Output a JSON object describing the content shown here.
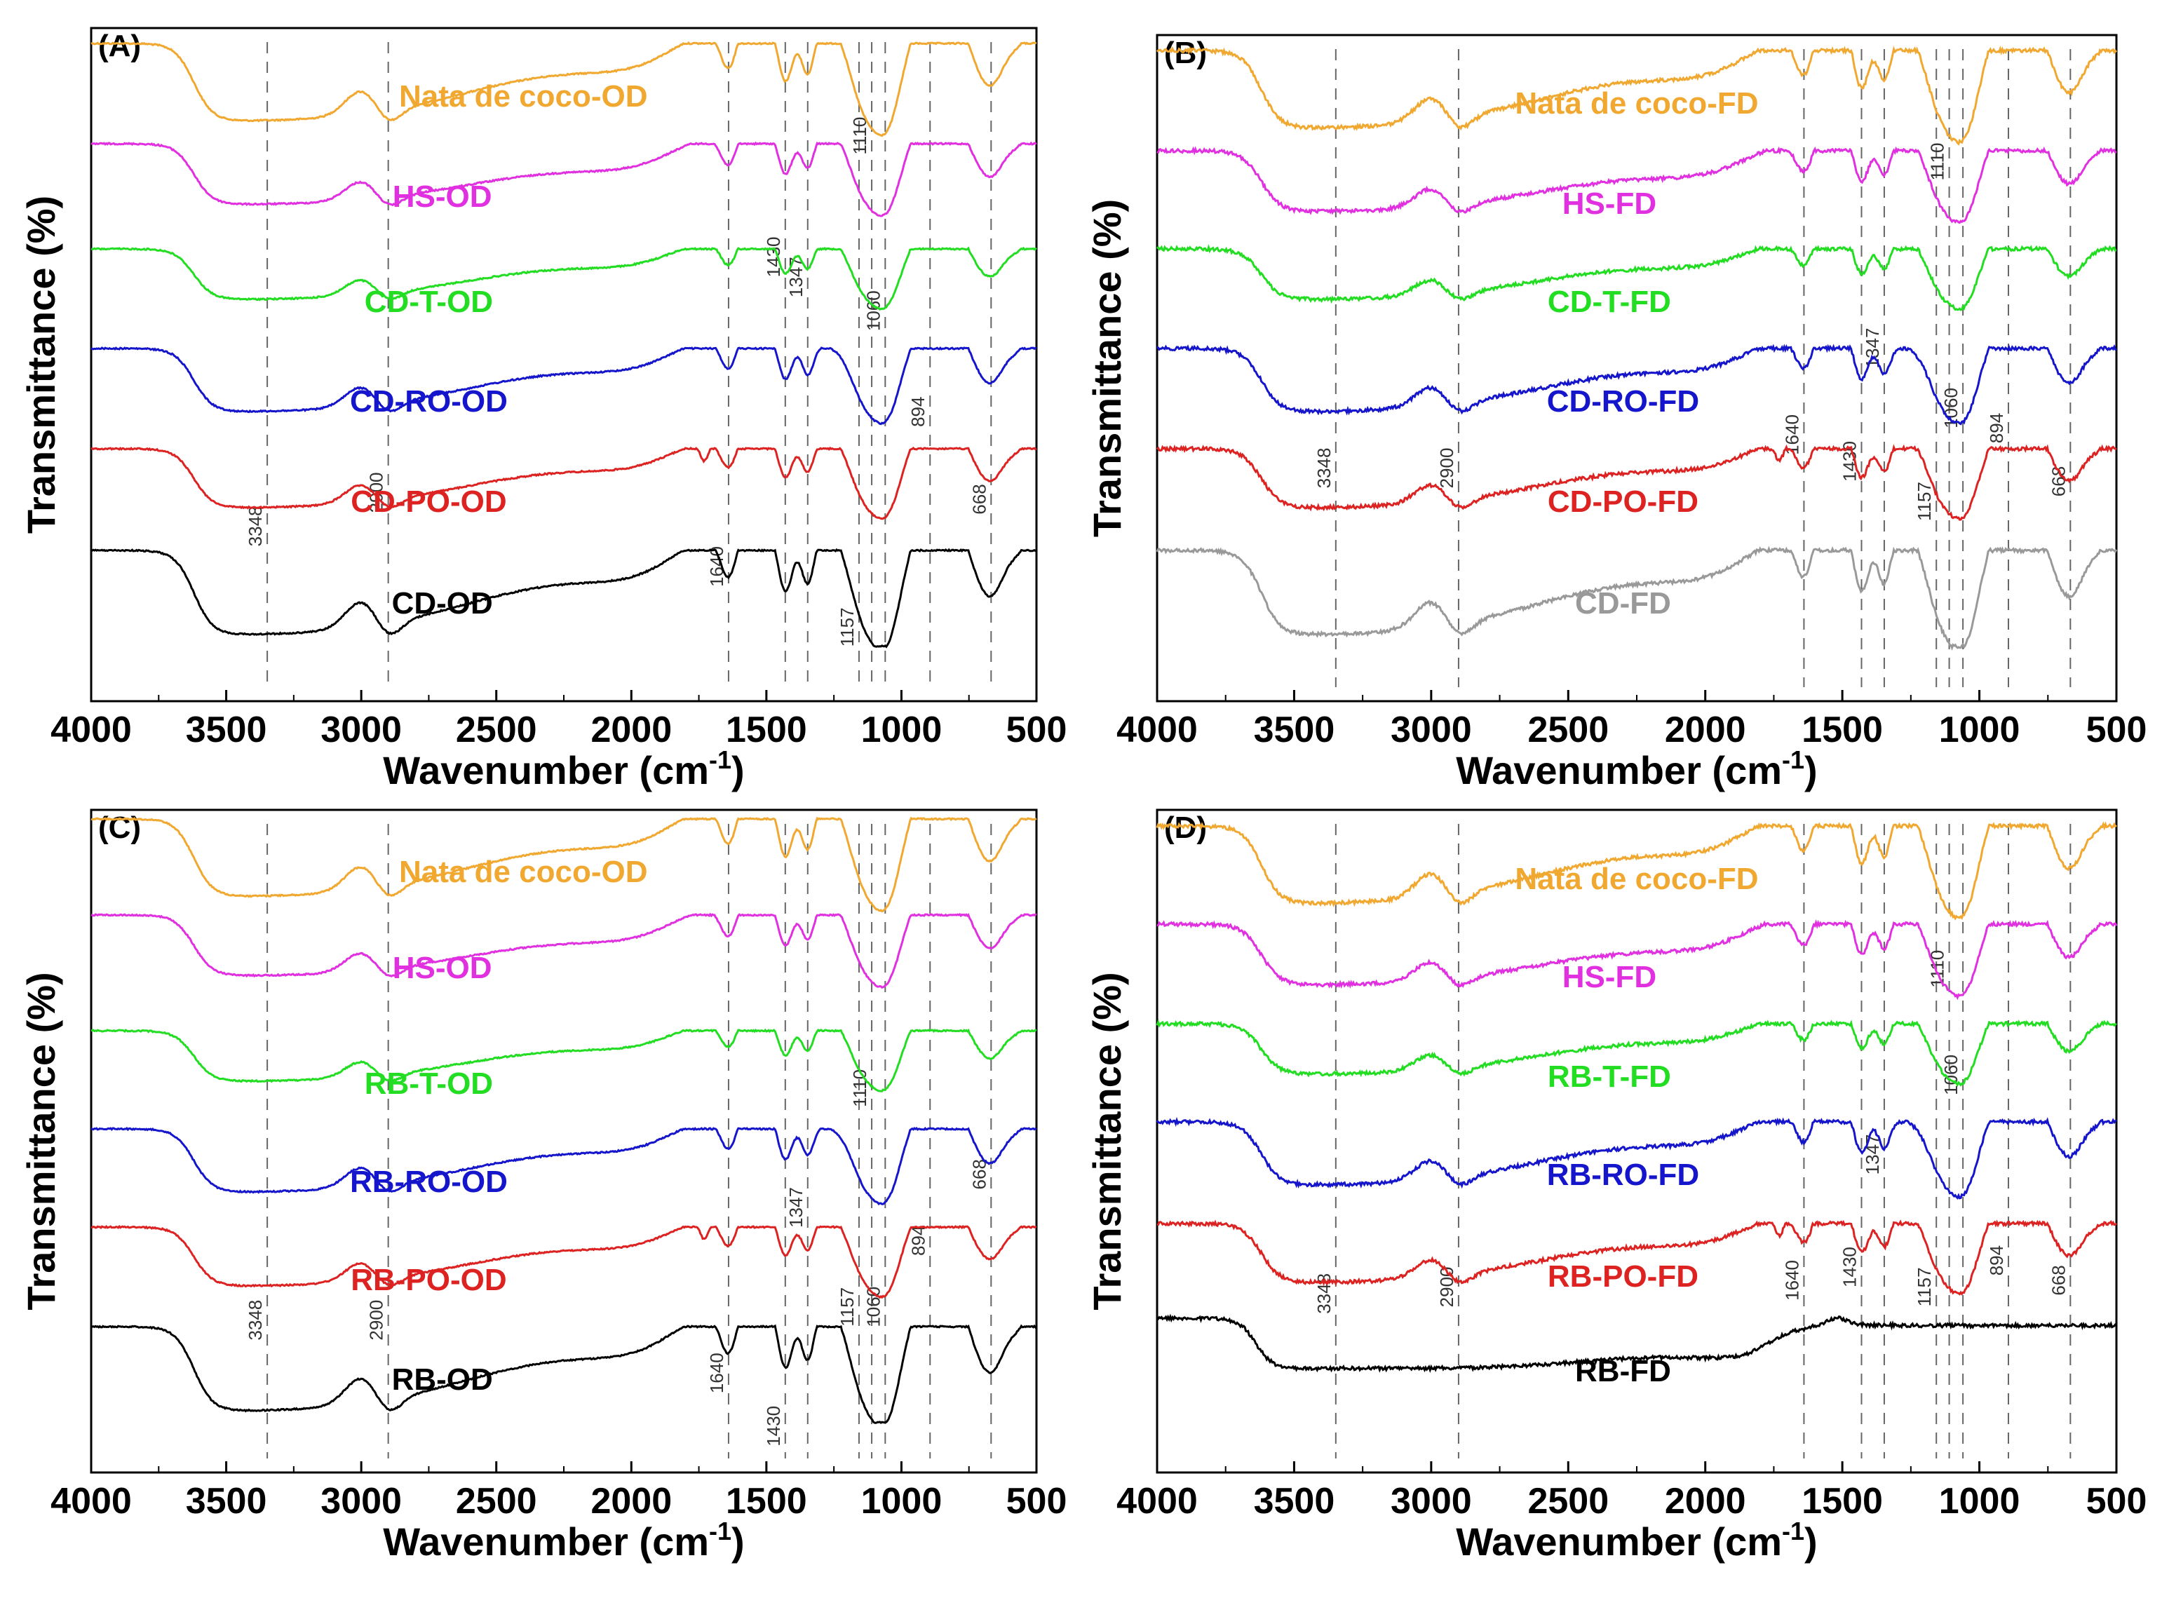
{
  "chart_data": [
    {
      "type": "line",
      "panel_label": "(A)",
      "xlabel": "Wavenumber (cm",
      "xlabel_sup": "-1",
      "xlabel_tail": ")",
      "ylabel": "Transmittance (%)",
      "xlim": [
        4000,
        500
      ],
      "x_reversed": true,
      "xticks": [
        "4000",
        "3500",
        "3000",
        "2500",
        "2000",
        "1500",
        "1000",
        "500"
      ],
      "peak_lines": [
        3348,
        2900,
        1640,
        1430,
        1347,
        1157,
        1110,
        1060,
        894,
        668
      ],
      "peak_labels": [
        {
          "text": "3348",
          "x": 3348,
          "level": 0.26
        },
        {
          "text": "2900",
          "x": 2900,
          "level": 0.31
        },
        {
          "text": "1640",
          "x": 1640,
          "level": 0.2
        },
        {
          "text": "1430",
          "x": 1430,
          "level": 0.66
        },
        {
          "text": "1347",
          "x": 1347,
          "level": 0.63
        },
        {
          "text": "1157",
          "x": 1157,
          "level": 0.11
        },
        {
          "text": "1110",
          "x": 1110,
          "level": 0.84
        },
        {
          "text": "1060",
          "x": 1060,
          "level": 0.58
        },
        {
          "text": "894",
          "x": 894,
          "level": 0.43
        },
        {
          "text": "668",
          "x": 668,
          "level": 0.3
        }
      ],
      "series": [
        {
          "name": "Nata de coco-OD",
          "color": "#f0a830",
          "label_x": 2400,
          "profile": "nata"
        },
        {
          "name": "HS-OD",
          "color": "#e030e0",
          "label_x": 2700,
          "profile": "hs"
        },
        {
          "name": "CD-T-OD",
          "color": "#22dd22",
          "label_x": 2750,
          "profile": "t"
        },
        {
          "name": "CD-RO-OD",
          "color": "#1515cc",
          "label_x": 2750,
          "profile": "ro"
        },
        {
          "name": "CD-PO-OD",
          "color": "#dd2222",
          "label_x": 2750,
          "profile": "po"
        },
        {
          "name": "CD-OD",
          "color": "#000000",
          "label_x": 2700,
          "profile": "base"
        }
      ]
    },
    {
      "type": "line",
      "panel_label": "(B)",
      "xlabel": "Wavenumber (cm",
      "xlabel_sup": "-1",
      "xlabel_tail": ")",
      "ylabel": "Transmittance (%)",
      "xlim": [
        4000,
        500
      ],
      "x_reversed": true,
      "xticks": [
        "4000",
        "3500",
        "3000",
        "2500",
        "2000",
        "1500",
        "1000",
        "500"
      ],
      "peak_lines": [
        3348,
        2900,
        1640,
        1430,
        1347,
        1157,
        1110,
        1060,
        894,
        668
      ],
      "peak_labels": [
        {
          "text": "3348",
          "x": 3348,
          "level": 0.35
        },
        {
          "text": "2900",
          "x": 2900,
          "level": 0.35
        },
        {
          "text": "1640",
          "x": 1640,
          "level": 0.4
        },
        {
          "text": "1430",
          "x": 1430,
          "level": 0.36
        },
        {
          "text": "1347",
          "x": 1347,
          "level": 0.53
        },
        {
          "text": "1157",
          "x": 1157,
          "level": 0.3
        },
        {
          "text": "1110",
          "x": 1110,
          "level": 0.81
        },
        {
          "text": "1060",
          "x": 1060,
          "level": 0.44
        },
        {
          "text": "894",
          "x": 894,
          "level": 0.41
        },
        {
          "text": "668",
          "x": 668,
          "level": 0.33
        }
      ],
      "series": [
        {
          "name": "Nata de coco-FD",
          "color": "#f0a830",
          "label_x": 2250,
          "profile": "nata"
        },
        {
          "name": "HS-FD",
          "color": "#e030e0",
          "label_x": 2350,
          "profile": "hs"
        },
        {
          "name": "CD-T-FD",
          "color": "#22dd22",
          "label_x": 2350,
          "profile": "t"
        },
        {
          "name": "CD-RO-FD",
          "color": "#1515cc",
          "label_x": 2300,
          "profile": "ro"
        },
        {
          "name": "CD-PO-FD",
          "color": "#dd2222",
          "label_x": 2300,
          "profile": "po"
        },
        {
          "name": "CD-FD",
          "color": "#999999",
          "label_x": 2300,
          "profile": "base"
        }
      ]
    },
    {
      "type": "line",
      "panel_label": "(C)",
      "xlabel": "Wavenumber (cm",
      "xlabel_sup": "-1",
      "xlabel_tail": ")",
      "ylabel": "Transmittance (%)",
      "xlim": [
        4000,
        500
      ],
      "x_reversed": true,
      "xticks": [
        "4000",
        "3500",
        "3000",
        "2500",
        "2000",
        "1500",
        "1000",
        "500"
      ],
      "peak_lines": [
        3348,
        2900,
        1640,
        1430,
        1347,
        1157,
        1110,
        1060,
        894,
        668
      ],
      "peak_labels": [
        {
          "text": "3348",
          "x": 3348,
          "level": 0.23
        },
        {
          "text": "2900",
          "x": 2900,
          "level": 0.23
        },
        {
          "text": "1640",
          "x": 1640,
          "level": 0.15
        },
        {
          "text": "1430",
          "x": 1430,
          "level": 0.07
        },
        {
          "text": "1347",
          "x": 1347,
          "level": 0.4
        },
        {
          "text": "1157",
          "x": 1157,
          "level": 0.25
        },
        {
          "text": "1110",
          "x": 1110,
          "level": 0.58
        },
        {
          "text": "1060",
          "x": 1060,
          "level": 0.25
        },
        {
          "text": "894",
          "x": 894,
          "level": 0.35
        },
        {
          "text": "668",
          "x": 668,
          "level": 0.45
        }
      ],
      "series": [
        {
          "name": "Nata de coco-OD",
          "color": "#f0a830",
          "label_x": 2400,
          "profile": "nata"
        },
        {
          "name": "HS-OD",
          "color": "#e030e0",
          "label_x": 2700,
          "profile": "hs"
        },
        {
          "name": "RB-T-OD",
          "color": "#22dd22",
          "label_x": 2750,
          "profile": "t"
        },
        {
          "name": "RB-RO-OD",
          "color": "#1515cc",
          "label_x": 2750,
          "profile": "ro"
        },
        {
          "name": "RB-PO-OD",
          "color": "#dd2222",
          "label_x": 2750,
          "profile": "po"
        },
        {
          "name": "RB-OD",
          "color": "#000000",
          "label_x": 2700,
          "profile": "base"
        }
      ]
    },
    {
      "type": "line",
      "panel_label": "(D)",
      "xlabel": "Wavenumber (cm",
      "xlabel_sup": "-1",
      "xlabel_tail": ")",
      "ylabel": "Transmittance (%)",
      "xlim": [
        4000,
        500
      ],
      "x_reversed": true,
      "xticks": [
        "4000",
        "3500",
        "3000",
        "2500",
        "2000",
        "1500",
        "1000",
        "500"
      ],
      "peak_lines": [
        3348,
        2900,
        1640,
        1430,
        1347,
        1157,
        1110,
        1060,
        894,
        668
      ],
      "peak_labels": [
        {
          "text": "3348",
          "x": 3348,
          "level": 0.27
        },
        {
          "text": "2900",
          "x": 2900,
          "level": 0.28
        },
        {
          "text": "1640",
          "x": 1640,
          "level": 0.29
        },
        {
          "text": "1430",
          "x": 1430,
          "level": 0.31
        },
        {
          "text": "1347",
          "x": 1347,
          "level": 0.48
        },
        {
          "text": "1157",
          "x": 1157,
          "level": 0.28
        },
        {
          "text": "1110",
          "x": 1110,
          "level": 0.76
        },
        {
          "text": "1060",
          "x": 1060,
          "level": 0.6
        },
        {
          "text": "894",
          "x": 894,
          "level": 0.32
        },
        {
          "text": "668",
          "x": 668,
          "level": 0.29
        }
      ],
      "series": [
        {
          "name": "Nata de coco-FD",
          "color": "#f0a830",
          "label_x": 2250,
          "profile": "nata"
        },
        {
          "name": "HS-FD",
          "color": "#e030e0",
          "label_x": 2350,
          "profile": "hs"
        },
        {
          "name": "RB-T-FD",
          "color": "#22dd22",
          "label_x": 2350,
          "profile": "t"
        },
        {
          "name": "RB-RO-FD",
          "color": "#1515cc",
          "label_x": 2300,
          "profile": "ro"
        },
        {
          "name": "RB-PO-FD",
          "color": "#dd2222",
          "label_x": 2300,
          "profile": "po"
        },
        {
          "name": "RB-FD",
          "color": "#000000",
          "label_x": 2300,
          "profile": "flat"
        }
      ]
    }
  ]
}
